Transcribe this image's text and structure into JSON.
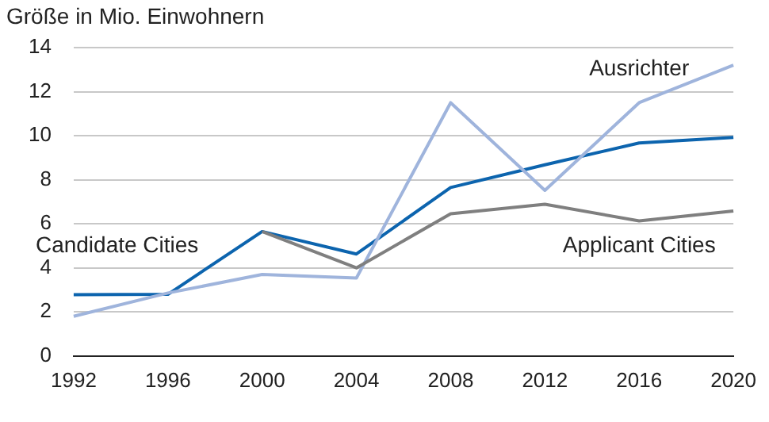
{
  "chart_data": {
    "type": "line",
    "title": "Größe in Mio. Einwohnern",
    "categories": [
      "1992",
      "1996",
      "2000",
      "2004",
      "2008",
      "2012",
      "2016",
      "2020"
    ],
    "series": [
      {
        "name": "Applicant Cities",
        "color": "#7f7f7f",
        "values": [
          null,
          null,
          5.65,
          4.0,
          6.46,
          6.89,
          6.13,
          6.58
        ]
      },
      {
        "name": "Ausrichter",
        "color": "#9fb4dc",
        "values": [
          1.8,
          2.86,
          3.7,
          3.54,
          11.5,
          7.52,
          11.5,
          13.2
        ]
      },
      {
        "name": "Candidate Cities",
        "color": "#0c64ae",
        "values": [
          2.78,
          2.8,
          5.65,
          4.63,
          7.65,
          8.68,
          9.67,
          9.92
        ]
      }
    ],
    "ylim": [
      0,
      14
    ],
    "yticks": [
      0,
      2,
      4,
      6,
      8,
      10,
      12,
      14
    ],
    "grid": "y",
    "legend": false,
    "marker": "none",
    "line_style": "solid"
  }
}
